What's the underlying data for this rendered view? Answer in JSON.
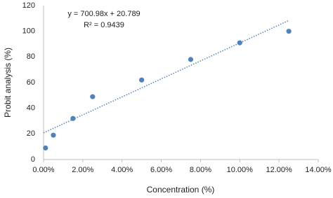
{
  "chart_data": {
    "type": "scatter",
    "x_label": "Concentration (%)",
    "y_label": "Probit analysis (%)",
    "annotations": [
      "y = 700.98x + 20.789",
      "R² = 0.9439"
    ],
    "series": [
      {
        "color": "#4f81bd",
        "x": [
          0.1,
          0.5,
          1.5,
          2.5,
          5,
          7.5,
          10,
          12.5
        ],
        "values": [
          9,
          19,
          32,
          49,
          62,
          78,
          91,
          100
        ]
      }
    ],
    "trendline": {
      "color": "#4f81bd",
      "x": [
        0,
        12.5
      ],
      "y": [
        20.8,
        108.4
      ]
    },
    "xlim": [
      0,
      14
    ],
    "xticks": [
      {
        "value": 0,
        "label": "0.00%"
      },
      {
        "value": 2,
        "label": "2.00%"
      },
      {
        "value": 4,
        "label": "4.00%"
      },
      {
        "value": 6,
        "label": "6.00%"
      },
      {
        "value": 8,
        "label": "8.00%"
      },
      {
        "value": 10,
        "label": "10.00%"
      },
      {
        "value": 12,
        "label": "12.00%"
      },
      {
        "value": 14,
        "label": "14.00%"
      }
    ],
    "ylim": [
      0,
      120
    ],
    "yticks": [
      0,
      20,
      40,
      60,
      80,
      100,
      120
    ],
    "grid": false
  }
}
